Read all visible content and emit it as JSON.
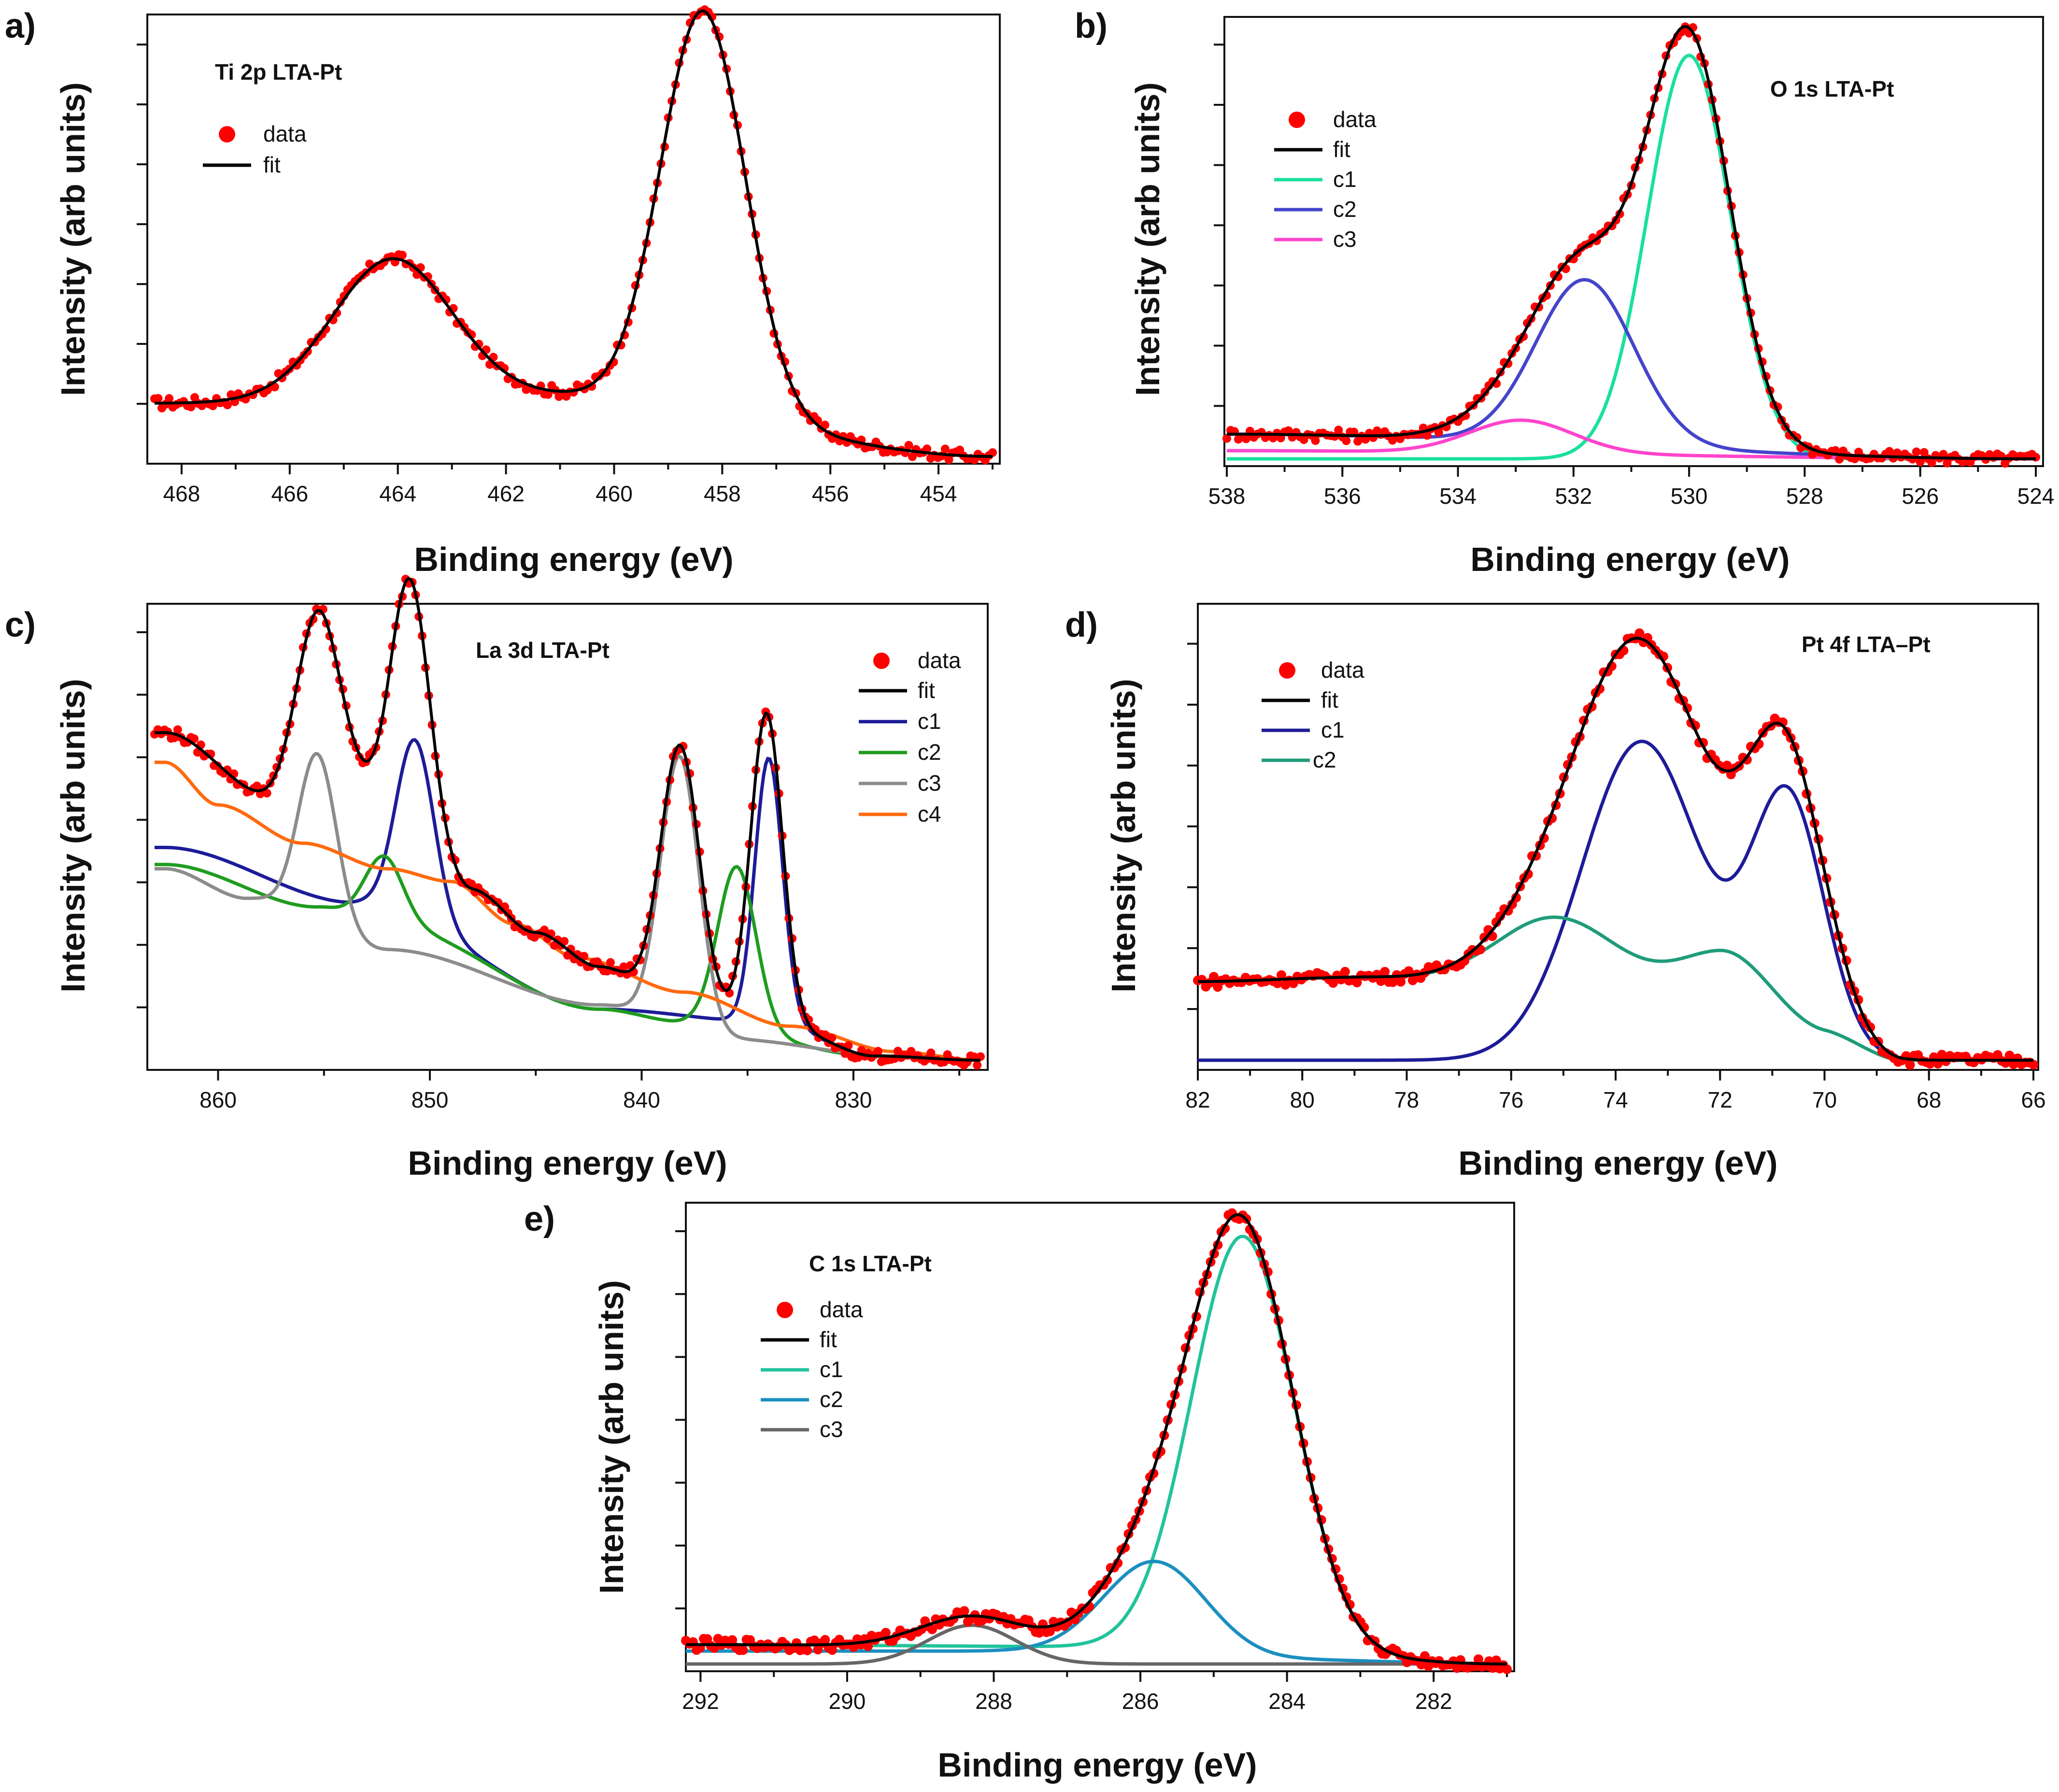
{
  "chart_data": [
    {
      "panel": "a)",
      "type": "line",
      "title": "Ti 2p LTA-Pt",
      "xlabel": "Binding energy (eV)",
      "ylabel": "Intensity (arb units)",
      "xlim": [
        468.5,
        453
      ],
      "ylim": [
        0,
        1.05
      ],
      "xticks": [
        468,
        466,
        464,
        462,
        460,
        458,
        456,
        454
      ],
      "legend_position": "top-left",
      "legend": [
        {
          "label": "data",
          "color": "#ff0000",
          "kind": "marker"
        },
        {
          "label": "fit",
          "color": "#000000",
          "kind": "line"
        }
      ],
      "baseline": {
        "points": [
          [
            468.5,
            0.13
          ],
          [
            461.2,
            0.15
          ],
          [
            453,
            0.0
          ]
        ]
      },
      "series": [
        {
          "name": "fit",
          "color": "#000000",
          "peaks": [
            [
              464.1,
              0.34,
              1.1
            ],
            [
              458.35,
              0.98,
              0.78
            ]
          ]
        }
      ]
    },
    {
      "panel": "b)",
      "type": "line",
      "title": "O 1s LTA-Pt",
      "xlabel": "Binding energy (eV)",
      "ylabel": "Intensity (arb units)",
      "xlim": [
        538,
        524
      ],
      "ylim": [
        0,
        1.05
      ],
      "xticks": [
        538,
        536,
        534,
        532,
        530,
        528,
        526,
        524
      ],
      "legend_position": "top-left",
      "legend": [
        {
          "label": "data",
          "color": "#ff0000",
          "kind": "marker"
        },
        {
          "label": "fit",
          "color": "#000000",
          "kind": "line"
        },
        {
          "label": "c1",
          "color": "#19e0a0",
          "kind": "line"
        },
        {
          "label": "c2",
          "color": "#4444cc",
          "kind": "line"
        },
        {
          "label": "c3",
          "color": "#ff44cc",
          "kind": "line"
        }
      ],
      "series": [
        {
          "name": "c1",
          "color": "#19e0a0",
          "base": [
            [
              538,
              0.0
            ],
            [
              524,
              0.0
            ]
          ],
          "peaks": [
            [
              530.0,
              0.98,
              0.72
            ]
          ]
        },
        {
          "name": "c2",
          "color": "#4444cc",
          "base": [
            [
              538,
              0.06
            ],
            [
              524,
              0.0
            ]
          ],
          "peaks": [
            [
              531.8,
              0.4,
              0.85
            ]
          ]
        },
        {
          "name": "c3",
          "color": "#ff44cc",
          "base": [
            [
              538,
              0.02
            ],
            [
              524,
              0.0
            ]
          ],
          "peaks": [
            [
              532.9,
              0.08,
              0.9
            ]
          ]
        }
      ],
      "fit": {
        "name": "fit",
        "color": "#000000",
        "sum_of": [
          "c1",
          "c2",
          "c3"
        ]
      }
    },
    {
      "panel": "c)",
      "type": "line",
      "title": "La 3d LTA-Pt",
      "xlabel": "Binding energy (eV)",
      "ylabel": "Intensity (arb units)",
      "xlim": [
        863,
        824
      ],
      "ylim": [
        0,
        1.05
      ],
      "xticks": [
        860,
        850,
        840,
        830
      ],
      "legend_position": "top-right",
      "legend": [
        {
          "label": "data",
          "color": "#ff0000",
          "kind": "marker"
        },
        {
          "label": "fit",
          "color": "#000000",
          "kind": "line"
        },
        {
          "label": "c1",
          "color": "#1c1c99",
          "kind": "line"
        },
        {
          "label": "c2",
          "color": "#1f9c1f",
          "kind": "line"
        },
        {
          "label": "c3",
          "color": "#8c8c8c",
          "kind": "line"
        },
        {
          "label": "c4",
          "color": "#ff6a0e",
          "kind": "line"
        }
      ],
      "series": [
        {
          "name": "c1",
          "color": "#1c1c99",
          "base": [
            [
              862.5,
              0.5
            ],
            [
              853.5,
              0.37
            ],
            [
              842,
              0.12
            ],
            [
              834,
              0.09
            ],
            [
              829,
              0.01
            ],
            [
              824,
              0.0
            ]
          ],
          "peaks": [
            [
              850.7,
              0.42,
              0.9
            ],
            [
              834.0,
              0.62,
              0.65
            ]
          ]
        },
        {
          "name": "c2",
          "color": "#1f9c1f",
          "base": [
            [
              862.5,
              0.46
            ],
            [
              855.3,
              0.36
            ],
            [
              852.2,
              0.32
            ],
            [
              842,
              0.12
            ],
            [
              838,
              0.09
            ],
            [
              829,
              0.01
            ],
            [
              824,
              0.0
            ]
          ],
          "peaks": [
            [
              852.2,
              0.16,
              0.9
            ],
            [
              835.5,
              0.38,
              0.9
            ]
          ]
        },
        {
          "name": "c3",
          "color": "#8c8c8c",
          "base": [
            [
              862.5,
              0.45
            ],
            [
              858.6,
              0.38
            ],
            [
              852,
              0.26
            ],
            [
              842,
              0.13
            ],
            [
              836,
              0.05
            ],
            [
              828,
              0.01
            ],
            [
              824,
              0.0
            ]
          ],
          "peaks": [
            [
              855.3,
              0.4,
              0.9
            ],
            [
              838.2,
              0.64,
              0.9
            ]
          ]
        },
        {
          "name": "c4",
          "color": "#ff6a0e",
          "base": [
            [
              862.5,
              0.7
            ],
            [
              860,
              0.6
            ],
            [
              856,
              0.51
            ],
            [
              852,
              0.45
            ],
            [
              849,
              0.42
            ],
            [
              846,
              0.32
            ],
            [
              843,
              0.24
            ],
            [
              838,
              0.16
            ],
            [
              833,
              0.08
            ],
            [
              828,
              0.02
            ],
            [
              824,
              0.0
            ]
          ],
          "peaks": []
        }
      ],
      "fit": {
        "name": "fit",
        "color": "#000000",
        "sum_of": [
          "c1",
          "c2",
          "c3",
          "c4"
        ],
        "offset_scheme": "envelope"
      },
      "envelope": {
        "base": [
          [
            862.5,
            0.77
          ],
          [
            857.5,
            0.62
          ],
          [
            855,
            0.7
          ],
          [
            852,
            0.62
          ],
          [
            848,
            0.4
          ],
          [
            845,
            0.3
          ],
          [
            842,
            0.22
          ],
          [
            838,
            0.12
          ],
          [
            833,
            0.07
          ],
          [
            829,
            0.01
          ],
          [
            824,
            0.0
          ]
        ],
        "peaks": [
          [
            855.3,
            0.36,
            1.0
          ],
          [
            850.9,
            0.55,
            0.9
          ],
          [
            838.2,
            0.62,
            0.9
          ],
          [
            834.1,
            0.74,
            0.75
          ]
        ]
      }
    },
    {
      "panel": "d)",
      "type": "line",
      "title": "Pt 4f LTA–Pt",
      "xlabel": "Binding energy (eV)",
      "ylabel": "Intensity (arb units)",
      "xlim": [
        82,
        66
      ],
      "ylim": [
        0,
        1.05
      ],
      "xticks": [
        82,
        80,
        78,
        76,
        74,
        72,
        70,
        68,
        66
      ],
      "legend_position": "top-left",
      "legend": [
        {
          "label": "data",
          "color": "#ff0000",
          "kind": "marker"
        },
        {
          "label": "fit",
          "color": "#000000",
          "kind": "line"
        },
        {
          "label": "c1",
          "color": "#1c1c99",
          "kind": "line"
        },
        {
          "label": "c2",
          "color": "#1f9c7a",
          "kind": "line"
        }
      ],
      "series": [
        {
          "name": "c1",
          "color": "#1c1c99",
          "base": [
            [
              82,
              0.0
            ],
            [
              66,
              0.0
            ]
          ],
          "peaks": [
            [
              73.5,
              0.77,
              1.15
            ],
            [
              70.7,
              0.62,
              0.7
            ]
          ]
        },
        {
          "name": "c2",
          "color": "#1f9c7a",
          "base": [
            [
              82,
              0.19
            ],
            [
              79,
              0.2
            ],
            [
              76,
              0.18
            ],
            [
              72,
              0.14
            ],
            [
              70,
              0.06
            ],
            [
              68.5,
              0.0
            ],
            [
              66,
              0.0
            ]
          ],
          "peaks": [
            [
              75.1,
              0.17,
              1.2
            ],
            [
              71.9,
              0.12,
              0.9
            ]
          ]
        }
      ],
      "fit": {
        "name": "fit",
        "color": "#000000",
        "sum_of": [
          "c1",
          "c2"
        ]
      }
    },
    {
      "panel": "e)",
      "type": "line",
      "title": "C 1s LTA-Pt",
      "xlabel": "Binding energy (eV)",
      "ylabel": "Intensity (arb units)",
      "xlim": [
        292.2,
        281
      ],
      "ylim": [
        0,
        1.05
      ],
      "xticks": [
        292,
        290,
        288,
        286,
        284,
        282
      ],
      "legend_position": "top-left",
      "legend": [
        {
          "label": "data",
          "color": "#ff0000",
          "kind": "marker"
        },
        {
          "label": "fit",
          "color": "#000000",
          "kind": "line"
        },
        {
          "label": "c1",
          "color": "#22c39a",
          "kind": "line"
        },
        {
          "label": "c2",
          "color": "#1b8fc0",
          "kind": "line"
        },
        {
          "label": "c3",
          "color": "#666666",
          "kind": "line"
        }
      ],
      "series": [
        {
          "name": "c1",
          "color": "#22c39a",
          "base": [
            [
              292.2,
              0.045
            ],
            [
              286,
              0.04
            ],
            [
              284,
              0.02
            ],
            [
              281,
              0.0
            ]
          ],
          "peaks": [
            [
              284.6,
              0.97,
              0.7
            ]
          ]
        },
        {
          "name": "c2",
          "color": "#1b8fc0",
          "base": [
            [
              292.2,
              0.03
            ],
            [
              288,
              0.03
            ],
            [
              284,
              0.01
            ],
            [
              281,
              0.0
            ]
          ],
          "peaks": [
            [
              285.8,
              0.22,
              0.7
            ]
          ]
        },
        {
          "name": "c3",
          "color": "#666666",
          "base": [
            [
              292.2,
              0.0
            ],
            [
              281,
              0.0
            ]
          ],
          "peaks": [
            [
              288.3,
              0.09,
              0.6
            ]
          ]
        }
      ],
      "fit": {
        "name": "fit",
        "color": "#000000",
        "sum_of": [
          "c1",
          "c3"
        ],
        "extra": [
          [
            288.3,
            0.07,
            0.7
          ]
        ]
      }
    }
  ]
}
